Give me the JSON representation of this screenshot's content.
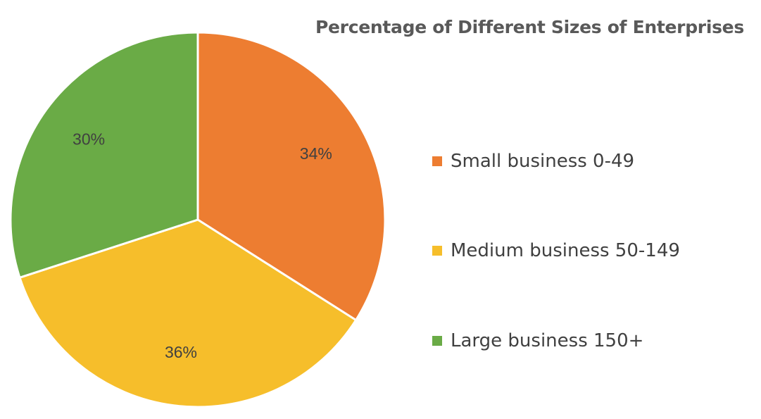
{
  "chart_data": {
    "type": "pie",
    "title": "Percentage of Different Sizes of Enterprises",
    "categories": [
      "Small business 0-49",
      "Medium business 50-149",
      "Large business 150+"
    ],
    "values": [
      34,
      36,
      30
    ],
    "data_labels": [
      "34%",
      "36%",
      "30%"
    ],
    "colors": [
      "#ED7D31",
      "#F6BE2B",
      "#6AAB46"
    ],
    "legend_position": "right",
    "start_angle": "12 o'clock",
    "direction": "clockwise"
  }
}
